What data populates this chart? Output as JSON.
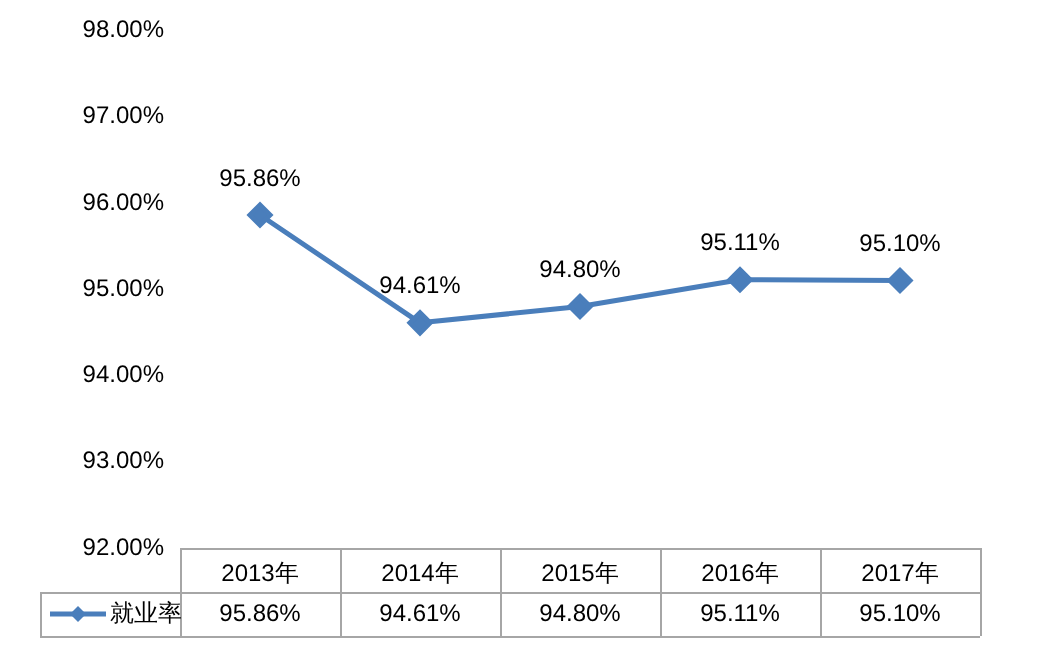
{
  "chart_data": {
    "type": "line",
    "categories": [
      "2013年",
      "2014年",
      "2015年",
      "2016年",
      "2017年"
    ],
    "series": [
      {
        "name": "就业率",
        "color": "#4a7ebb",
        "values": [
          95.86,
          94.61,
          94.8,
          95.11,
          95.1
        ],
        "value_labels": [
          "95.86%",
          "94.61%",
          "94.80%",
          "95.11%",
          "95.10%"
        ]
      }
    ],
    "ylim": [
      92,
      98
    ],
    "yticks": [
      {
        "value": 92,
        "label": "92.00%"
      },
      {
        "value": 93,
        "label": "93.00%"
      },
      {
        "value": 94,
        "label": "94.00%"
      },
      {
        "value": 95,
        "label": "95.00%"
      },
      {
        "value": 96,
        "label": "96.00%"
      },
      {
        "value": 97,
        "label": "97.00%"
      },
      {
        "value": 98,
        "label": "98.00%"
      }
    ],
    "marker": "diamond",
    "line_style": "solid",
    "grid": false,
    "legend": "bottom left"
  }
}
